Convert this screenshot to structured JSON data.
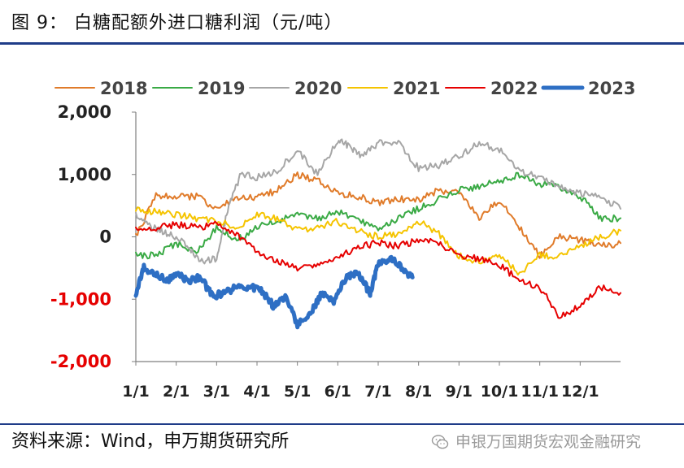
{
  "figure": {
    "title": "图 9：  白糖配额外进口糖利润（元/吨）",
    "source": "资料来源：Wind，申万期货研究所",
    "watermark": "申银万国期货宏观金融研究"
  },
  "chart_data": {
    "type": "line",
    "title": "白糖配额外进口糖利润（元/吨）",
    "xlabel": "",
    "ylabel": "",
    "ylim": [
      -2000,
      2000
    ],
    "yticks": [
      -2000,
      -1000,
      0,
      1000,
      2000
    ],
    "ytick_labels": [
      "-2,000",
      "-1,000",
      "0",
      "1,000",
      "2,000"
    ],
    "negative_tick_color": "#e60000",
    "xlim": [
      1,
      13
    ],
    "xticks": [
      1,
      2,
      3,
      4,
      5,
      6,
      7,
      8,
      9,
      10,
      11,
      12
    ],
    "xtick_labels": [
      "1/1",
      "2/1",
      "3/1",
      "4/1",
      "5/1",
      "6/1",
      "7/1",
      "8/1",
      "9/1",
      "10/1",
      "11/1",
      "12/1"
    ],
    "grid": false,
    "legend_position": "top",
    "series": [
      {
        "name": "2018",
        "color": "#e07b2a",
        "width": 2,
        "x": [
          1,
          1.5,
          2,
          2.5,
          3,
          3.5,
          4,
          4.5,
          5,
          5.5,
          6,
          6.5,
          7,
          7.5,
          8,
          8.5,
          9,
          9.5,
          10,
          10.5,
          11,
          11.5,
          12,
          12.5,
          13
        ],
        "y": [
          0,
          650,
          650,
          650,
          450,
          620,
          620,
          750,
          1000,
          900,
          700,
          650,
          550,
          600,
          600,
          750,
          700,
          300,
          600,
          150,
          -300,
          0,
          -50,
          -150,
          -100
        ]
      },
      {
        "name": "2019",
        "color": "#3aaa45",
        "width": 2,
        "x": [
          1,
          1.5,
          2,
          2.5,
          3,
          3.5,
          4,
          4.5,
          5,
          5.5,
          6,
          6.5,
          7,
          7.5,
          8,
          8.5,
          9,
          9.5,
          10,
          10.5,
          11,
          11.5,
          12,
          12.5,
          13
        ],
        "y": [
          -300,
          -300,
          -100,
          -250,
          150,
          -50,
          150,
          250,
          350,
          300,
          400,
          250,
          150,
          300,
          450,
          600,
          750,
          800,
          900,
          1000,
          850,
          800,
          650,
          300,
          300
        ]
      },
      {
        "name": "2020",
        "color": "#a6a6a6",
        "width": 2,
        "x": [
          1,
          1.4,
          1.8,
          2.2,
          2.6,
          3,
          3.3,
          3.6,
          4,
          4.5,
          5,
          5.5,
          6,
          6.3,
          6.6,
          7,
          7.5,
          8,
          8.5,
          9,
          9.5,
          10,
          10.5,
          11,
          11.5,
          12,
          12.5,
          13
        ],
        "y": [
          350,
          150,
          50,
          -100,
          -400,
          -350,
          500,
          1000,
          950,
          1050,
          1400,
          1000,
          1550,
          1450,
          1300,
          1500,
          1500,
          1100,
          1150,
          1300,
          1500,
          1400,
          1050,
          950,
          800,
          700,
          650,
          450
        ]
      },
      {
        "name": "2021",
        "color": "#f5c400",
        "width": 2,
        "x": [
          1,
          1.5,
          2,
          2.5,
          3,
          3.5,
          4,
          4.5,
          5,
          5.5,
          6,
          6.5,
          7,
          7.5,
          8,
          8.5,
          9,
          9.5,
          10,
          10.5,
          11,
          11.5,
          12,
          12.5,
          13
        ],
        "y": [
          450,
          400,
          350,
          300,
          250,
          150,
          350,
          300,
          100,
          150,
          250,
          100,
          0,
          50,
          250,
          50,
          -300,
          -400,
          -300,
          -600,
          -300,
          -300,
          -150,
          0,
          100
        ]
      },
      {
        "name": "2022",
        "color": "#e60000",
        "width": 2,
        "x": [
          1,
          1.5,
          2,
          2.5,
          3,
          3.5,
          4,
          4.5,
          5,
          5.5,
          6,
          6.5,
          7,
          7.5,
          8,
          8.5,
          9,
          9.5,
          10,
          10.5,
          11,
          11.5,
          12,
          12.5,
          13
        ],
        "y": [
          100,
          150,
          200,
          150,
          200,
          50,
          -250,
          -400,
          -500,
          -450,
          -350,
          -150,
          -100,
          -150,
          -50,
          -100,
          -300,
          -350,
          -450,
          -700,
          -800,
          -1300,
          -1100,
          -800,
          -900
        ]
      },
      {
        "name": "2023",
        "color": "#2e6fc4",
        "width": 5,
        "x": [
          1,
          1.2,
          1.5,
          1.8,
          2,
          2.3,
          2.6,
          2.9,
          3.2,
          3.5,
          3.8,
          4.1,
          4.4,
          4.7,
          5,
          5.3,
          5.6,
          5.9,
          6.2,
          6.5,
          6.8,
          7,
          7.3,
          7.6,
          7.85
        ],
        "y": [
          -900,
          -500,
          -600,
          -700,
          -600,
          -700,
          -650,
          -950,
          -900,
          -800,
          -800,
          -850,
          -1100,
          -950,
          -1400,
          -1250,
          -900,
          -1050,
          -650,
          -600,
          -900,
          -450,
          -350,
          -500,
          -650
        ]
      }
    ]
  }
}
